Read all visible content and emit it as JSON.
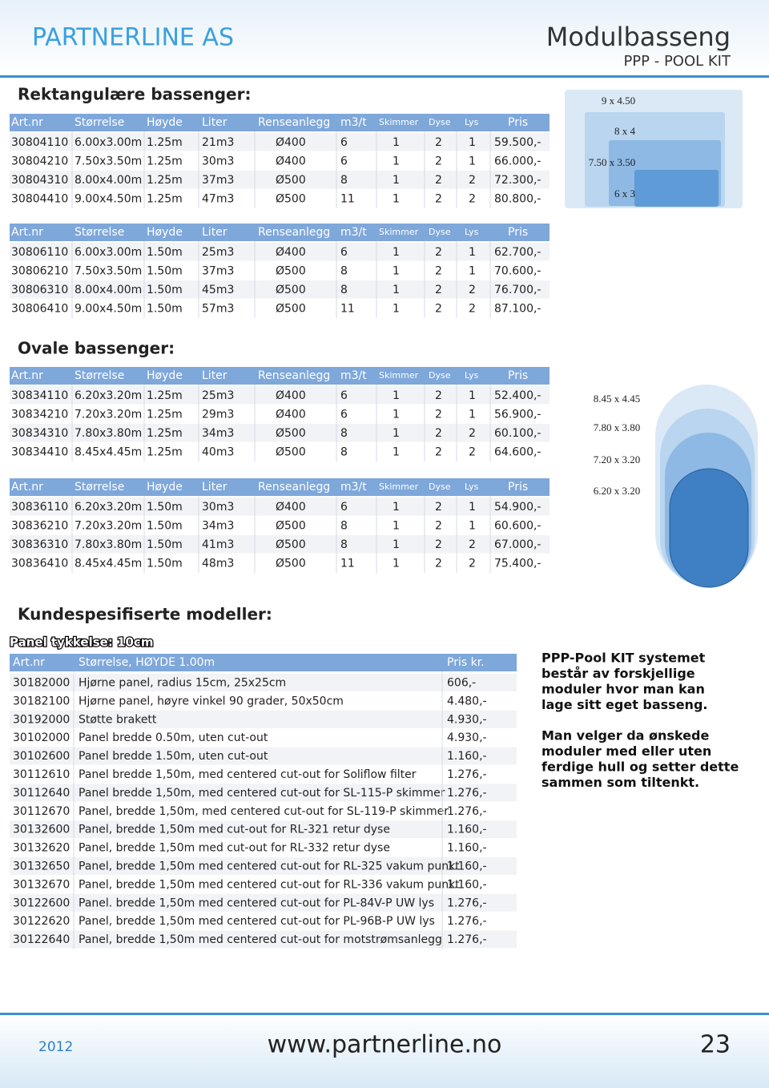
{
  "header": {
    "company": "PARTNERLINE AS",
    "title": "Modulbasseng",
    "subtitle": "PPP - POOL KIT"
  },
  "rect_section": {
    "title": "Rektangulære bassenger:",
    "tables": [
      {
        "columns": [
          "Art.nr",
          "Størrelse",
          "Høyde",
          "Liter",
          "Renseanlegg",
          "m3/t",
          "Skimmer",
          "Dyse",
          "Lys",
          "Pris"
        ],
        "rows": [
          [
            "30804110",
            "6.00x3.00m",
            "1.25m",
            "21m3",
            "Ø400",
            "6",
            "1",
            "2",
            "1",
            "59.500,-"
          ],
          [
            "30804210",
            "7.50x3.50m",
            "1.25m",
            "30m3",
            "Ø400",
            "6",
            "1",
            "2",
            "1",
            "66.000,-"
          ],
          [
            "30804310",
            "8.00x4.00m",
            "1.25m",
            "37m3",
            "Ø500",
            "8",
            "1",
            "2",
            "2",
            "72.300,-"
          ],
          [
            "30804410",
            "9.00x4.50m",
            "1.25m",
            "47m3",
            "Ø500",
            "11",
            "1",
            "2",
            "2",
            "80.800,-"
          ]
        ]
      },
      {
        "columns": [
          "Art.nr",
          "Størrelse",
          "Høyde",
          "Liter",
          "Renseanlegg",
          "m3/t",
          "Skimmer",
          "Dyse",
          "Lys",
          "Pris"
        ],
        "rows": [
          [
            "30806110",
            "6.00x3.00m",
            "1.50m",
            "25m3",
            "Ø400",
            "6",
            "1",
            "2",
            "1",
            "62.700,-"
          ],
          [
            "30806210",
            "7.50x3.50m",
            "1.50m",
            "37m3",
            "Ø500",
            "8",
            "1",
            "2",
            "1",
            "70.600,-"
          ],
          [
            "30806310",
            "8.00x4.00m",
            "1.50m",
            "45m3",
            "Ø500",
            "8",
            "1",
            "2",
            "2",
            "76.700,-"
          ],
          [
            "30806410",
            "9.00x4.50m",
            "1.50m",
            "57m3",
            "Ø500",
            "11",
            "1",
            "2",
            "2",
            "87.100,-"
          ]
        ]
      }
    ],
    "diagram_labels": [
      "9 x 4.50",
      "8 x 4",
      "7.50 x 3.50",
      "6 x 3"
    ]
  },
  "oval_section": {
    "title": "Ovale bassenger:",
    "tables": [
      {
        "columns": [
          "Art.nr",
          "Størrelse",
          "Høyde",
          "Liter",
          "Renseanlegg",
          "m3/t",
          "Skimmer",
          "Dyse",
          "Lys",
          "Pris"
        ],
        "rows": [
          [
            "30834110",
            "6.20x3.20m",
            "1.25m",
            "25m3",
            "Ø400",
            "6",
            "1",
            "2",
            "1",
            "52.400,-"
          ],
          [
            "30834210",
            "7.20x3.20m",
            "1.25m",
            "29m3",
            "Ø400",
            "6",
            "1",
            "2",
            "1",
            "56.900,-"
          ],
          [
            "30834310",
            "7.80x3.80m",
            "1.25m",
            "34m3",
            "Ø500",
            "8",
            "1",
            "2",
            "2",
            "60.100,-"
          ],
          [
            "30834410",
            "8.45x4.45m",
            "1.25m",
            "40m3",
            "Ø500",
            "8",
            "1",
            "2",
            "2",
            "64.600,-"
          ]
        ]
      },
      {
        "columns": [
          "Art.nr",
          "Størrelse",
          "Høyde",
          "Liter",
          "Renseanlegg",
          "m3/t",
          "Skimmer",
          "Dyse",
          "Lys",
          "Pris"
        ],
        "rows": [
          [
            "30836110",
            "6.20x3.20m",
            "1.50m",
            "30m3",
            "Ø400",
            "6",
            "1",
            "2",
            "1",
            "54.900,-"
          ],
          [
            "30836210",
            "7.20x3.20m",
            "1.50m",
            "34m3",
            "Ø500",
            "8",
            "1",
            "2",
            "1",
            "60.600,-"
          ],
          [
            "30836310",
            "7.80x3.80m",
            "1.50m",
            "41m3",
            "Ø500",
            "8",
            "1",
            "2",
            "2",
            "67.000,-"
          ],
          [
            "30836410",
            "8.45x4.45m",
            "1.50m",
            "48m3",
            "Ø500",
            "11",
            "1",
            "2",
            "2",
            "75.400,-"
          ]
        ]
      }
    ],
    "diagram_labels": [
      "8.45 x 4.45",
      "7.80 x 3.80",
      "7.20 x 3.20",
      "6.20 x 3.20"
    ]
  },
  "custom_section": {
    "title": "Kundespesifiserte modeller:",
    "panel_note": "Panel tykkelse: 10cm",
    "table": {
      "columns": [
        "Art.nr",
        "Størrelse,  HØYDE 1.00m",
        "Pris kr."
      ],
      "rows": [
        [
          "30182000",
          "Hjørne panel, radius 15cm, 25x25cm",
          "606,-"
        ],
        [
          "30182100",
          "Hjørne panel, høyre vinkel 90 grader, 50x50cm",
          "4.480,-"
        ],
        [
          "30192000",
          "Støtte brakett",
          "4.930,-"
        ],
        [
          "30102000",
          "Panel bredde 0.50m, uten cut-out",
          "4.930,-"
        ],
        [
          "30102600",
          "Panel bredde 1.50m, uten cut-out",
          "1.160,-"
        ],
        [
          "30112610",
          "Panel bredde 1,50m, med centered cut-out for Soliflow filter",
          "1.276,-"
        ],
        [
          "30112640",
          "Panel bredde 1,50m, med centered cut-out for SL-115-P skimmer",
          "1.276,-"
        ],
        [
          "30112670",
          "Panel, bredde 1,50m, med centered cut-out for SL-119-P skimmer",
          "1.276,-"
        ],
        [
          "30132600",
          "Panel, bredde 1,50m med cut-out for RL-321 retur dyse",
          "1.160,-"
        ],
        [
          "30132620",
          "Panel, bredde 1,50m med cut-out for RL-332 retur dyse",
          "1.160,-"
        ],
        [
          "30132650",
          "Panel, bredde 1,50m med centered cut-out for RL-325 vakum punkt",
          "1.160,-"
        ],
        [
          "30132670",
          "Panel, bredde 1,50m med centered cut-out for RL-336 vakum punkt",
          "1.160,-"
        ],
        [
          "30122600",
          "Panel. bredde 1,50m med centered cut-out for PL-84V-P UW lys",
          "1.276,-"
        ],
        [
          "30122620",
          "Panel, bredde 1,50m med centered cut-out for PL-96B-P UW lys",
          "1.276,-"
        ],
        [
          "30122640",
          "Panel, bredde 1,50m med centered cut-out for motstrømsanlegg",
          "1.276,-"
        ]
      ]
    },
    "side_text": [
      [
        "PPP-Pool KIT systemet",
        "består av forskjellige",
        "moduler hvor man kan",
        "lage sitt eget basseng."
      ],
      [
        "Man velger da ønskede",
        "moduler med eller uten",
        "ferdige hull og setter dette",
        "sammen som tiltenkt."
      ]
    ]
  },
  "footer": {
    "year": "2012",
    "url": "www.partnerline.no",
    "page": "23"
  }
}
